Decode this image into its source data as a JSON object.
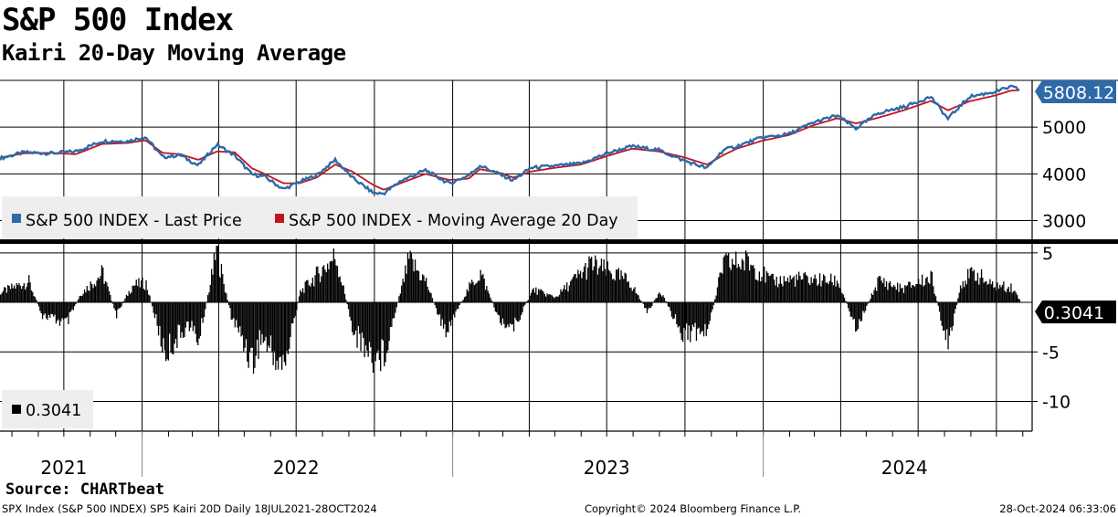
{
  "title": "S&P 500 Index",
  "subtitle": "Kairi 20-Day Moving Average",
  "source": "Source: CHARTbeat",
  "footer": {
    "left": "SPX Index (S&P 500 INDEX) SP5 Kairi 20D  Daily 18JUL2021-28OCT2024",
    "center": "Copyright© 2024 Bloomberg Finance L.P.",
    "right": "28-Oct-2024 06:33:06"
  },
  "colors": {
    "price": "#2e6aa8",
    "ma": "#c0151f",
    "kairi": "#000000"
  },
  "chart_data": [
    {
      "type": "line",
      "panel": "upper",
      "legend_position": "bottom-left",
      "grid": true,
      "ylim": [
        2600,
        6000
      ],
      "yticks": [
        3000,
        4000,
        5000
      ],
      "ytick_labels": [
        "3000",
        "4000",
        "5000"
      ],
      "last_value_label": "5808.12",
      "x_labels": [
        "2021",
        "2022",
        "2023",
        "2024"
      ],
      "x": [
        "2021-07-18",
        "2021-08-15",
        "2021-09-15",
        "2021-10-15",
        "2021-11-15",
        "2021-12-15",
        "2022-01-05",
        "2022-01-25",
        "2022-02-15",
        "2022-03-08",
        "2022-03-30",
        "2022-04-20",
        "2022-05-10",
        "2022-05-25",
        "2022-06-16",
        "2022-07-05",
        "2022-07-25",
        "2022-08-16",
        "2022-09-05",
        "2022-09-30",
        "2022-10-12",
        "2022-11-01",
        "2022-11-30",
        "2022-12-28",
        "2023-01-20",
        "2023-02-02",
        "2023-02-28",
        "2023-03-13",
        "2023-04-03",
        "2023-05-01",
        "2023-06-01",
        "2023-07-03",
        "2023-07-31",
        "2023-08-31",
        "2023-09-29",
        "2023-10-27",
        "2023-11-15",
        "2023-12-01",
        "2023-12-29",
        "2024-01-31",
        "2024-02-29",
        "2024-03-28",
        "2024-04-19",
        "2024-05-15",
        "2024-06-14",
        "2024-07-16",
        "2024-08-05",
        "2024-08-30",
        "2024-09-30",
        "2024-10-18",
        "2024-10-28"
      ],
      "series": [
        {
          "name": "S&P 500 INDEX - Last Price",
          "values": [
            4330,
            4460,
            4440,
            4480,
            4700,
            4700,
            4790,
            4360,
            4400,
            4180,
            4630,
            4390,
            3990,
            3940,
            3670,
            3830,
            3970,
            4300,
            3920,
            3590,
            3580,
            3850,
            4080,
            3790,
            3970,
            4180,
            3970,
            3860,
            4130,
            4170,
            4220,
            4450,
            4590,
            4510,
            4290,
            4120,
            4510,
            4590,
            4770,
            4850,
            5100,
            5250,
            4970,
            5300,
            5430,
            5650,
            5180,
            5650,
            5760,
            5860,
            5808
          ]
        },
        {
          "name": "S&P 500 INDEX - Moving Average 20 Day",
          "values": [
            4350,
            4440,
            4450,
            4420,
            4640,
            4660,
            4720,
            4450,
            4420,
            4300,
            4480,
            4460,
            4120,
            4000,
            3800,
            3800,
            3920,
            4200,
            4050,
            3760,
            3660,
            3800,
            4000,
            3870,
            3900,
            4100,
            4010,
            3920,
            4050,
            4130,
            4200,
            4390,
            4540,
            4480,
            4360,
            4200,
            4400,
            4540,
            4700,
            4830,
            5040,
            5190,
            5080,
            5200,
            5360,
            5560,
            5360,
            5550,
            5680,
            5780,
            5790
          ]
        }
      ]
    },
    {
      "type": "bar",
      "panel": "lower",
      "ylim": [
        -13,
        6
      ],
      "yticks": [
        5,
        -5,
        -10
      ],
      "ytick_labels": [
        "5",
        "-5",
        "-10"
      ],
      "last_value_label": "0.3041",
      "legend": "0.3041",
      "x": [
        "2021-07-18",
        "2021-08-20",
        "2021-09-05",
        "2021-10-04",
        "2021-10-20",
        "2021-11-15",
        "2021-12-01",
        "2021-12-20",
        "2022-01-05",
        "2022-01-27",
        "2022-02-24",
        "2022-03-08",
        "2022-03-29",
        "2022-04-15",
        "2022-05-11",
        "2022-05-20",
        "2022-06-16",
        "2022-07-05",
        "2022-08-16",
        "2022-09-06",
        "2022-09-30",
        "2022-10-12",
        "2022-11-10",
        "2022-11-30",
        "2022-12-22",
        "2023-01-20",
        "2023-02-02",
        "2023-02-24",
        "2023-03-13",
        "2023-04-05",
        "2023-05-01",
        "2023-06-12",
        "2023-07-27",
        "2023-08-18",
        "2023-09-01",
        "2023-09-26",
        "2023-10-27",
        "2023-11-14",
        "2023-12-14",
        "2024-01-10",
        "2024-02-09",
        "2024-03-28",
        "2024-04-19",
        "2024-05-15",
        "2024-06-12",
        "2024-07-16",
        "2024-08-05",
        "2024-08-20",
        "2024-09-06",
        "2024-09-24",
        "2024-10-18",
        "2024-10-28"
      ],
      "values": [
        1.2,
        2.5,
        -1.5,
        -2.5,
        1.0,
        3.5,
        -1.5,
        2.0,
        2.3,
        -6.0,
        -2.5,
        -4.5,
        6.0,
        -1.5,
        -7.0,
        -4.0,
        -7.8,
        1.2,
        5.5,
        -3.5,
        -6.5,
        -6.0,
        5.0,
        2.5,
        -3.5,
        1.8,
        3.5,
        -2.0,
        -3.0,
        1.5,
        0.6,
        4.5,
        2.5,
        -1.2,
        1.5,
        -3.5,
        -3.5,
        4.5,
        4.8,
        2.5,
        2.8,
        2.5,
        -3.0,
        2.6,
        1.6,
        3.0,
        -5.5,
        2.5,
        3.5,
        2.0,
        1.8,
        0.3041
      ]
    }
  ],
  "legend": {
    "price_label": "S&P 500 INDEX - Last Price",
    "ma_label": "S&P 500 INDEX - Moving Average 20 Day"
  }
}
